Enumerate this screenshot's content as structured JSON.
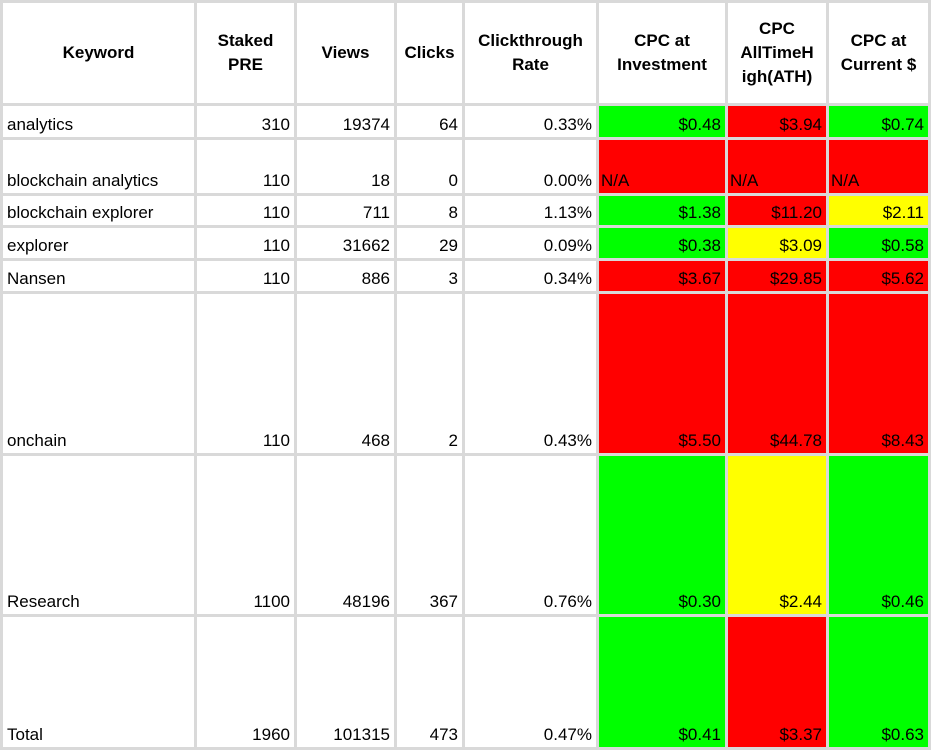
{
  "colors": {
    "green": "#00ff00",
    "red": "#ff0000",
    "yellow": "#ffff00",
    "grid": "#d9d9d9"
  },
  "headers": {
    "keyword": "Keyword",
    "staked": "Staked PRE",
    "views": "Views",
    "clicks": "Clicks",
    "ctr": "Clickthrough Rate",
    "cpc_investment": "CPC at Investment",
    "cpc_ath": "CPC AllTimeH igh(ATH)",
    "cpc_current": "CPC at Current $"
  },
  "rows": [
    {
      "keyword": "analytics",
      "staked": "310",
      "views": "19374",
      "clicks": "64",
      "ctr": "0.33%",
      "cpc_investment": "$0.48",
      "cpc_ath": "$3.94",
      "cpc_current": "$0.74",
      "c_inv": "green",
      "c_ath": "red",
      "c_cur": "green"
    },
    {
      "keyword": "blockchain analytics",
      "staked": "110",
      "views": "18",
      "clicks": "0",
      "ctr": "0.00%",
      "cpc_investment": "N/A",
      "cpc_ath": "N/A",
      "cpc_current": "N/A",
      "c_inv": "red",
      "c_ath": "red",
      "c_cur": "red"
    },
    {
      "keyword": "blockchain explorer",
      "staked": "110",
      "views": "711",
      "clicks": "8",
      "ctr": "1.13%",
      "cpc_investment": "$1.38",
      "cpc_ath": "$11.20",
      "cpc_current": "$2.11",
      "c_inv": "green",
      "c_ath": "red",
      "c_cur": "yellow"
    },
    {
      "keyword": "explorer",
      "staked": "110",
      "views": "31662",
      "clicks": "29",
      "ctr": "0.09%",
      "cpc_investment": "$0.38",
      "cpc_ath": "$3.09",
      "cpc_current": "$0.58",
      "c_inv": "green",
      "c_ath": "yellow",
      "c_cur": "green"
    },
    {
      "keyword": "Nansen",
      "staked": "110",
      "views": "886",
      "clicks": "3",
      "ctr": "0.34%",
      "cpc_investment": "$3.67",
      "cpc_ath": "$29.85",
      "cpc_current": "$5.62",
      "c_inv": "red",
      "c_ath": "red",
      "c_cur": "red"
    },
    {
      "keyword": "onchain",
      "staked": "110",
      "views": "468",
      "clicks": "2",
      "ctr": "0.43%",
      "cpc_investment": "$5.50",
      "cpc_ath": "$44.78",
      "cpc_current": "$8.43",
      "c_inv": "red",
      "c_ath": "red",
      "c_cur": "red"
    },
    {
      "keyword": "Research",
      "staked": "1100",
      "views": "48196",
      "clicks": "367",
      "ctr": "0.76%",
      "cpc_investment": "$0.30",
      "cpc_ath": "$2.44",
      "cpc_current": "$0.46",
      "c_inv": "green",
      "c_ath": "yellow",
      "c_cur": "green"
    },
    {
      "keyword": "Total",
      "staked": "1960",
      "views": "101315",
      "clicks": "473",
      "ctr": "0.47%",
      "cpc_investment": "$0.41",
      "cpc_ath": "$3.37",
      "cpc_current": "$0.63",
      "c_inv": "green",
      "c_ath": "red",
      "c_cur": "green"
    }
  ]
}
